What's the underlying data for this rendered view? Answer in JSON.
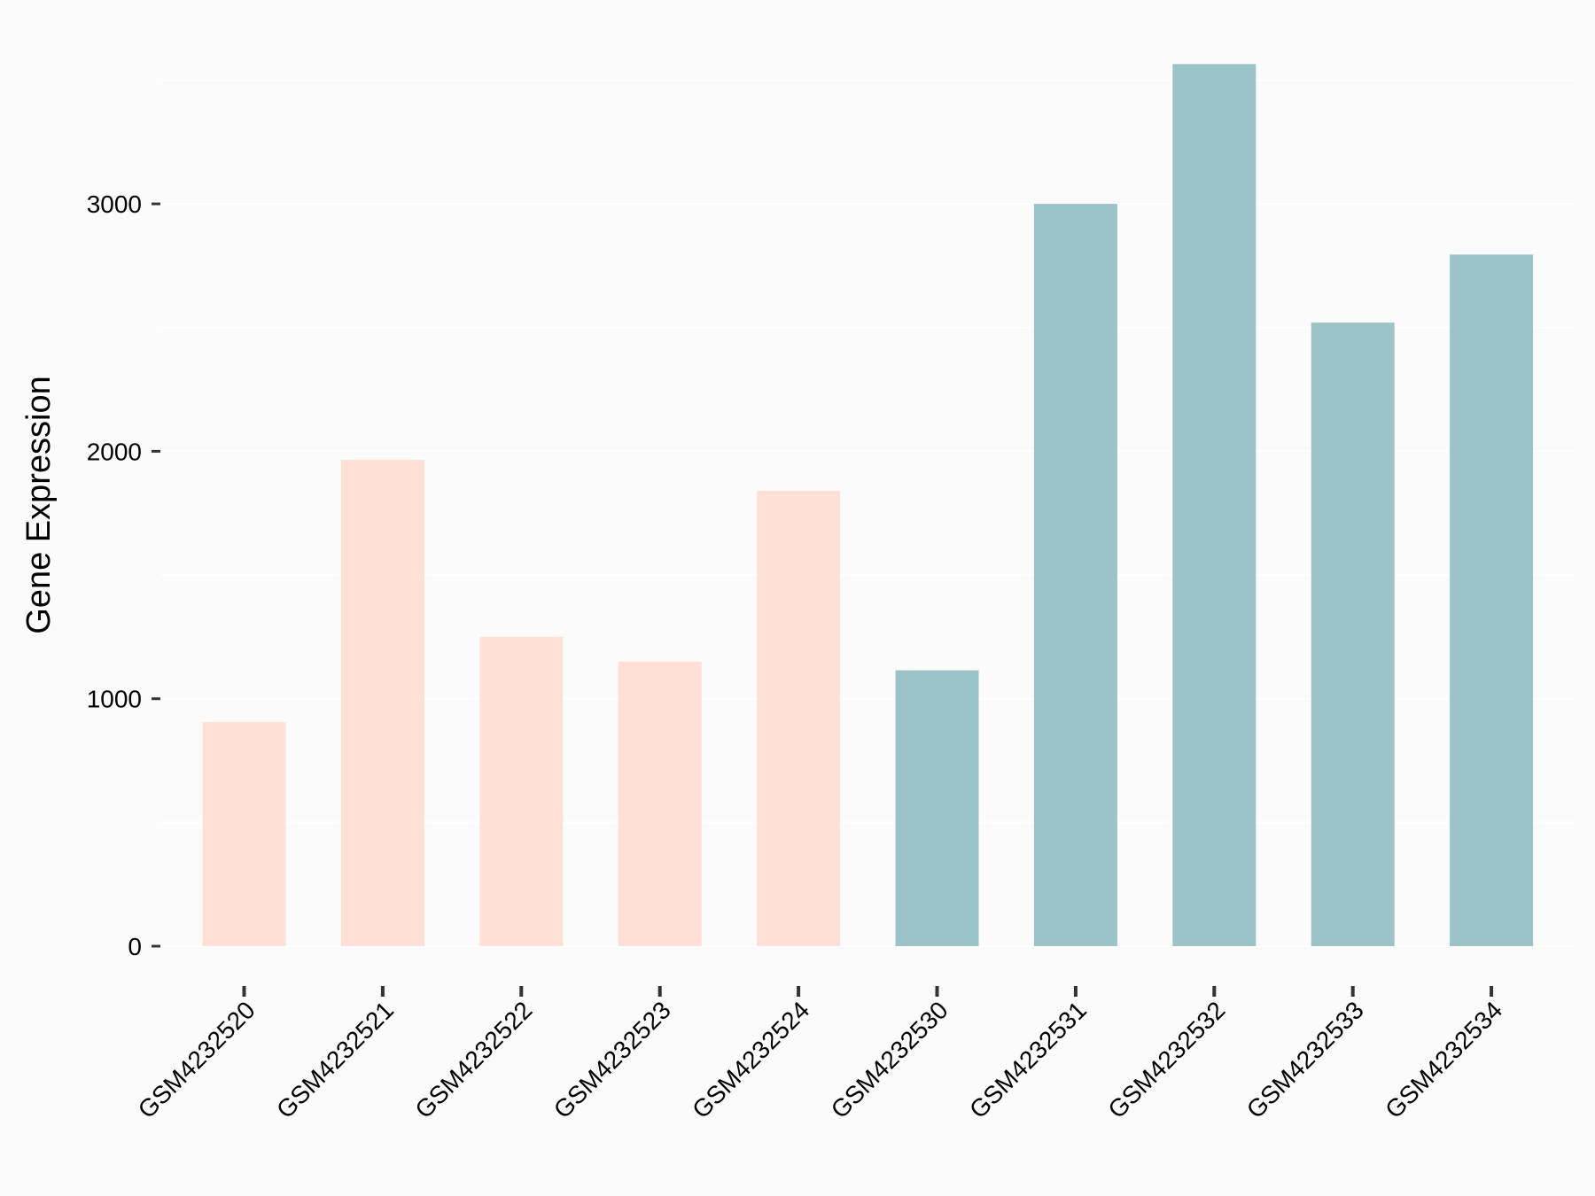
{
  "chart_data": {
    "type": "bar",
    "title": "",
    "xlabel": "",
    "ylabel": "Gene Expression",
    "ylim": [
      0,
      3600
    ],
    "yticks": [
      0,
      1000,
      2000,
      3000
    ],
    "ytick_labels": [
      "0",
      "1000",
      "2000",
      "3000"
    ],
    "grid": true,
    "categories": [
      "GSM4232520",
      "GSM4232521",
      "GSM4232522",
      "GSM4232523",
      "GSM4232524",
      "GSM4232530",
      "GSM4232531",
      "GSM4232532",
      "GSM4232533",
      "GSM4232534"
    ],
    "values": [
      905,
      1965,
      1250,
      1150,
      1840,
      1115,
      3000,
      3565,
      2520,
      2795
    ],
    "bar_colors": [
      "#ffe0d6",
      "#ffe0d6",
      "#ffe0d6",
      "#ffe0d6",
      "#ffe0d6",
      "#9cc3c7",
      "#9cc3c7",
      "#9cc3c7",
      "#9cc3c7",
      "#9cc3c7"
    ],
    "legend": "none",
    "background": "#fbfbfb"
  }
}
